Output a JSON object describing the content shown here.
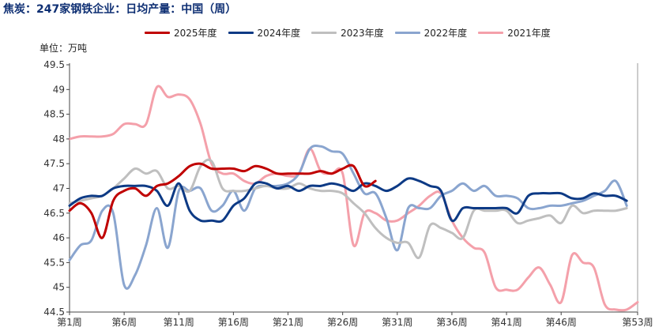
{
  "chart_title": "焦炭：247家钢铁企业：日均产量：中国（周）",
  "unit": "单位：万吨",
  "colors": {
    "2025": "#c00000",
    "2024": "#0d3a85",
    "2023": "#bfbfbf",
    "2022": "#8aa5cf",
    "2021": "#f4a0aa"
  },
  "chart_data": {
    "type": "line",
    "ylim": [
      44.5,
      49.5
    ],
    "xlim": [
      1,
      53
    ],
    "yticks": [
      "49.5",
      "49",
      "48.5",
      "48",
      "47.5",
      "47",
      "46.5",
      "46",
      "45.5",
      "45",
      "44.5"
    ],
    "ytick_values": [
      49.5,
      49,
      48.5,
      48,
      47.5,
      47,
      46.5,
      46,
      45.5,
      45,
      44.5
    ],
    "xticks": [
      "第1周",
      "第6周",
      "第11周",
      "第16周",
      "第21周",
      "第26周",
      "第31周",
      "第36周",
      "第41周",
      "第46周",
      "第53周"
    ],
    "xtick_values": [
      1,
      6,
      11,
      16,
      21,
      26,
      31,
      36,
      41,
      46,
      53
    ],
    "legend_position": "top",
    "grid": false,
    "series": [
      {
        "name": "2025年度",
        "color_key": "2025",
        "x": [
          1,
          2,
          3,
          4,
          5,
          6,
          7,
          8,
          9,
          10,
          11,
          12,
          13,
          14,
          15,
          16,
          17,
          18,
          19,
          20,
          21,
          22,
          23,
          24,
          25,
          26,
          27,
          28,
          29
        ],
        "y": [
          46.55,
          46.7,
          46.5,
          46.0,
          46.75,
          46.95,
          47.0,
          46.85,
          47.05,
          47.1,
          47.25,
          47.45,
          47.5,
          47.4,
          47.4,
          47.4,
          47.35,
          47.45,
          47.4,
          47.3,
          47.3,
          47.3,
          47.3,
          47.35,
          47.3,
          47.4,
          47.45,
          47.05,
          47.15
        ]
      },
      {
        "name": "2024年度",
        "color_key": "2024",
        "x": [
          1,
          2,
          3,
          4,
          5,
          6,
          7,
          8,
          9,
          10,
          11,
          12,
          13,
          14,
          15,
          16,
          17,
          18,
          19,
          20,
          21,
          22,
          23,
          24,
          25,
          26,
          27,
          28,
          29,
          30,
          31,
          32,
          33,
          34,
          35,
          36,
          37,
          38,
          39,
          40,
          41,
          42,
          43,
          44,
          45,
          46,
          47,
          48,
          49,
          50,
          51,
          52
        ],
        "y": [
          46.65,
          46.8,
          46.85,
          46.85,
          47.0,
          47.05,
          47.05,
          47.05,
          46.95,
          46.65,
          47.1,
          46.55,
          46.35,
          46.35,
          46.35,
          46.65,
          46.8,
          47.1,
          47.1,
          47.0,
          47.05,
          46.95,
          47.05,
          47.05,
          47.1,
          47.05,
          46.95,
          47.1,
          47.05,
          46.95,
          47.05,
          47.2,
          47.15,
          47.05,
          46.95,
          46.35,
          46.6,
          46.6,
          46.6,
          46.6,
          46.6,
          46.5,
          46.85,
          46.9,
          46.9,
          46.9,
          46.8,
          46.8,
          46.9,
          46.85,
          46.85,
          46.75
        ]
      },
      {
        "name": "2023年度",
        "color_key": "2023",
        "x": [
          1,
          2,
          3,
          4,
          5,
          6,
          7,
          8,
          9,
          10,
          11,
          12,
          13,
          14,
          15,
          16,
          17,
          18,
          19,
          20,
          21,
          22,
          23,
          24,
          25,
          26,
          27,
          28,
          29,
          30,
          31,
          32,
          33,
          34,
          35,
          36,
          37,
          38,
          39,
          40,
          41,
          42,
          43,
          44,
          45,
          46,
          47,
          48,
          49,
          50,
          51,
          52
        ],
        "y": [
          46.7,
          46.75,
          46.8,
          46.85,
          47.0,
          47.2,
          47.4,
          47.3,
          47.35,
          47.0,
          47.05,
          46.95,
          47.45,
          47.55,
          47.0,
          46.95,
          46.95,
          47.0,
          47.05,
          47.0,
          47.0,
          47.1,
          47.0,
          46.95,
          46.95,
          46.9,
          46.7,
          46.5,
          46.2,
          46.0,
          45.9,
          45.9,
          45.6,
          46.25,
          46.2,
          46.1,
          46.0,
          46.55,
          46.55,
          46.55,
          46.55,
          46.3,
          46.35,
          46.4,
          46.45,
          46.3,
          46.65,
          46.5,
          46.55,
          46.55,
          46.55,
          46.6
        ]
      },
      {
        "name": "2022年度",
        "color_key": "2022",
        "x": [
          1,
          2,
          3,
          4,
          5,
          6,
          7,
          8,
          9,
          10,
          11,
          12,
          13,
          14,
          15,
          16,
          17,
          18,
          19,
          20,
          21,
          22,
          23,
          24,
          25,
          26,
          27,
          28,
          29,
          30,
          31,
          32,
          33,
          34,
          35,
          36,
          37,
          38,
          39,
          40,
          41,
          42,
          43,
          44,
          45,
          46,
          47,
          48,
          49,
          50,
          51,
          52
        ],
        "y": [
          45.55,
          45.85,
          45.95,
          46.55,
          46.5,
          45.05,
          45.25,
          45.85,
          46.6,
          45.8,
          46.95,
          46.95,
          47.0,
          46.55,
          46.65,
          46.95,
          46.55,
          47.0,
          47.05,
          47.05,
          47.1,
          47.3,
          47.8,
          47.85,
          47.75,
          47.7,
          47.3,
          46.9,
          46.9,
          46.4,
          45.75,
          46.6,
          46.6,
          46.6,
          46.85,
          46.95,
          47.1,
          46.95,
          47.05,
          46.85,
          46.85,
          46.8,
          46.6,
          46.6,
          46.65,
          46.65,
          46.7,
          46.75,
          46.85,
          46.95,
          47.15,
          46.65
        ]
      },
      {
        "name": "2021年度",
        "color_key": "2021",
        "x": [
          1,
          2,
          3,
          4,
          5,
          6,
          7,
          8,
          9,
          10,
          11,
          12,
          13,
          14,
          15,
          16,
          17,
          18,
          19,
          20,
          21,
          22,
          23,
          24,
          25,
          26,
          27,
          28,
          29,
          30,
          31,
          32,
          33,
          34,
          35,
          36,
          37,
          38,
          39,
          40,
          41,
          42,
          43,
          44,
          45,
          46,
          47,
          48,
          49,
          50,
          51,
          52,
          53
        ],
        "y": [
          48.0,
          48.05,
          48.05,
          48.05,
          48.1,
          48.3,
          48.3,
          48.3,
          49.05,
          48.85,
          48.9,
          48.8,
          48.3,
          47.5,
          47.3,
          47.3,
          47.15,
          47.1,
          47.25,
          47.3,
          47.25,
          47.3,
          47.8,
          47.35,
          47.3,
          47.3,
          45.85,
          46.5,
          46.5,
          46.35,
          46.35,
          46.5,
          46.65,
          46.85,
          46.9,
          46.35,
          46.0,
          45.8,
          45.7,
          45.0,
          44.95,
          44.95,
          45.2,
          45.4,
          45.05,
          44.7,
          45.65,
          45.5,
          45.4,
          44.65,
          44.55,
          44.55,
          44.7
        ]
      }
    ]
  }
}
